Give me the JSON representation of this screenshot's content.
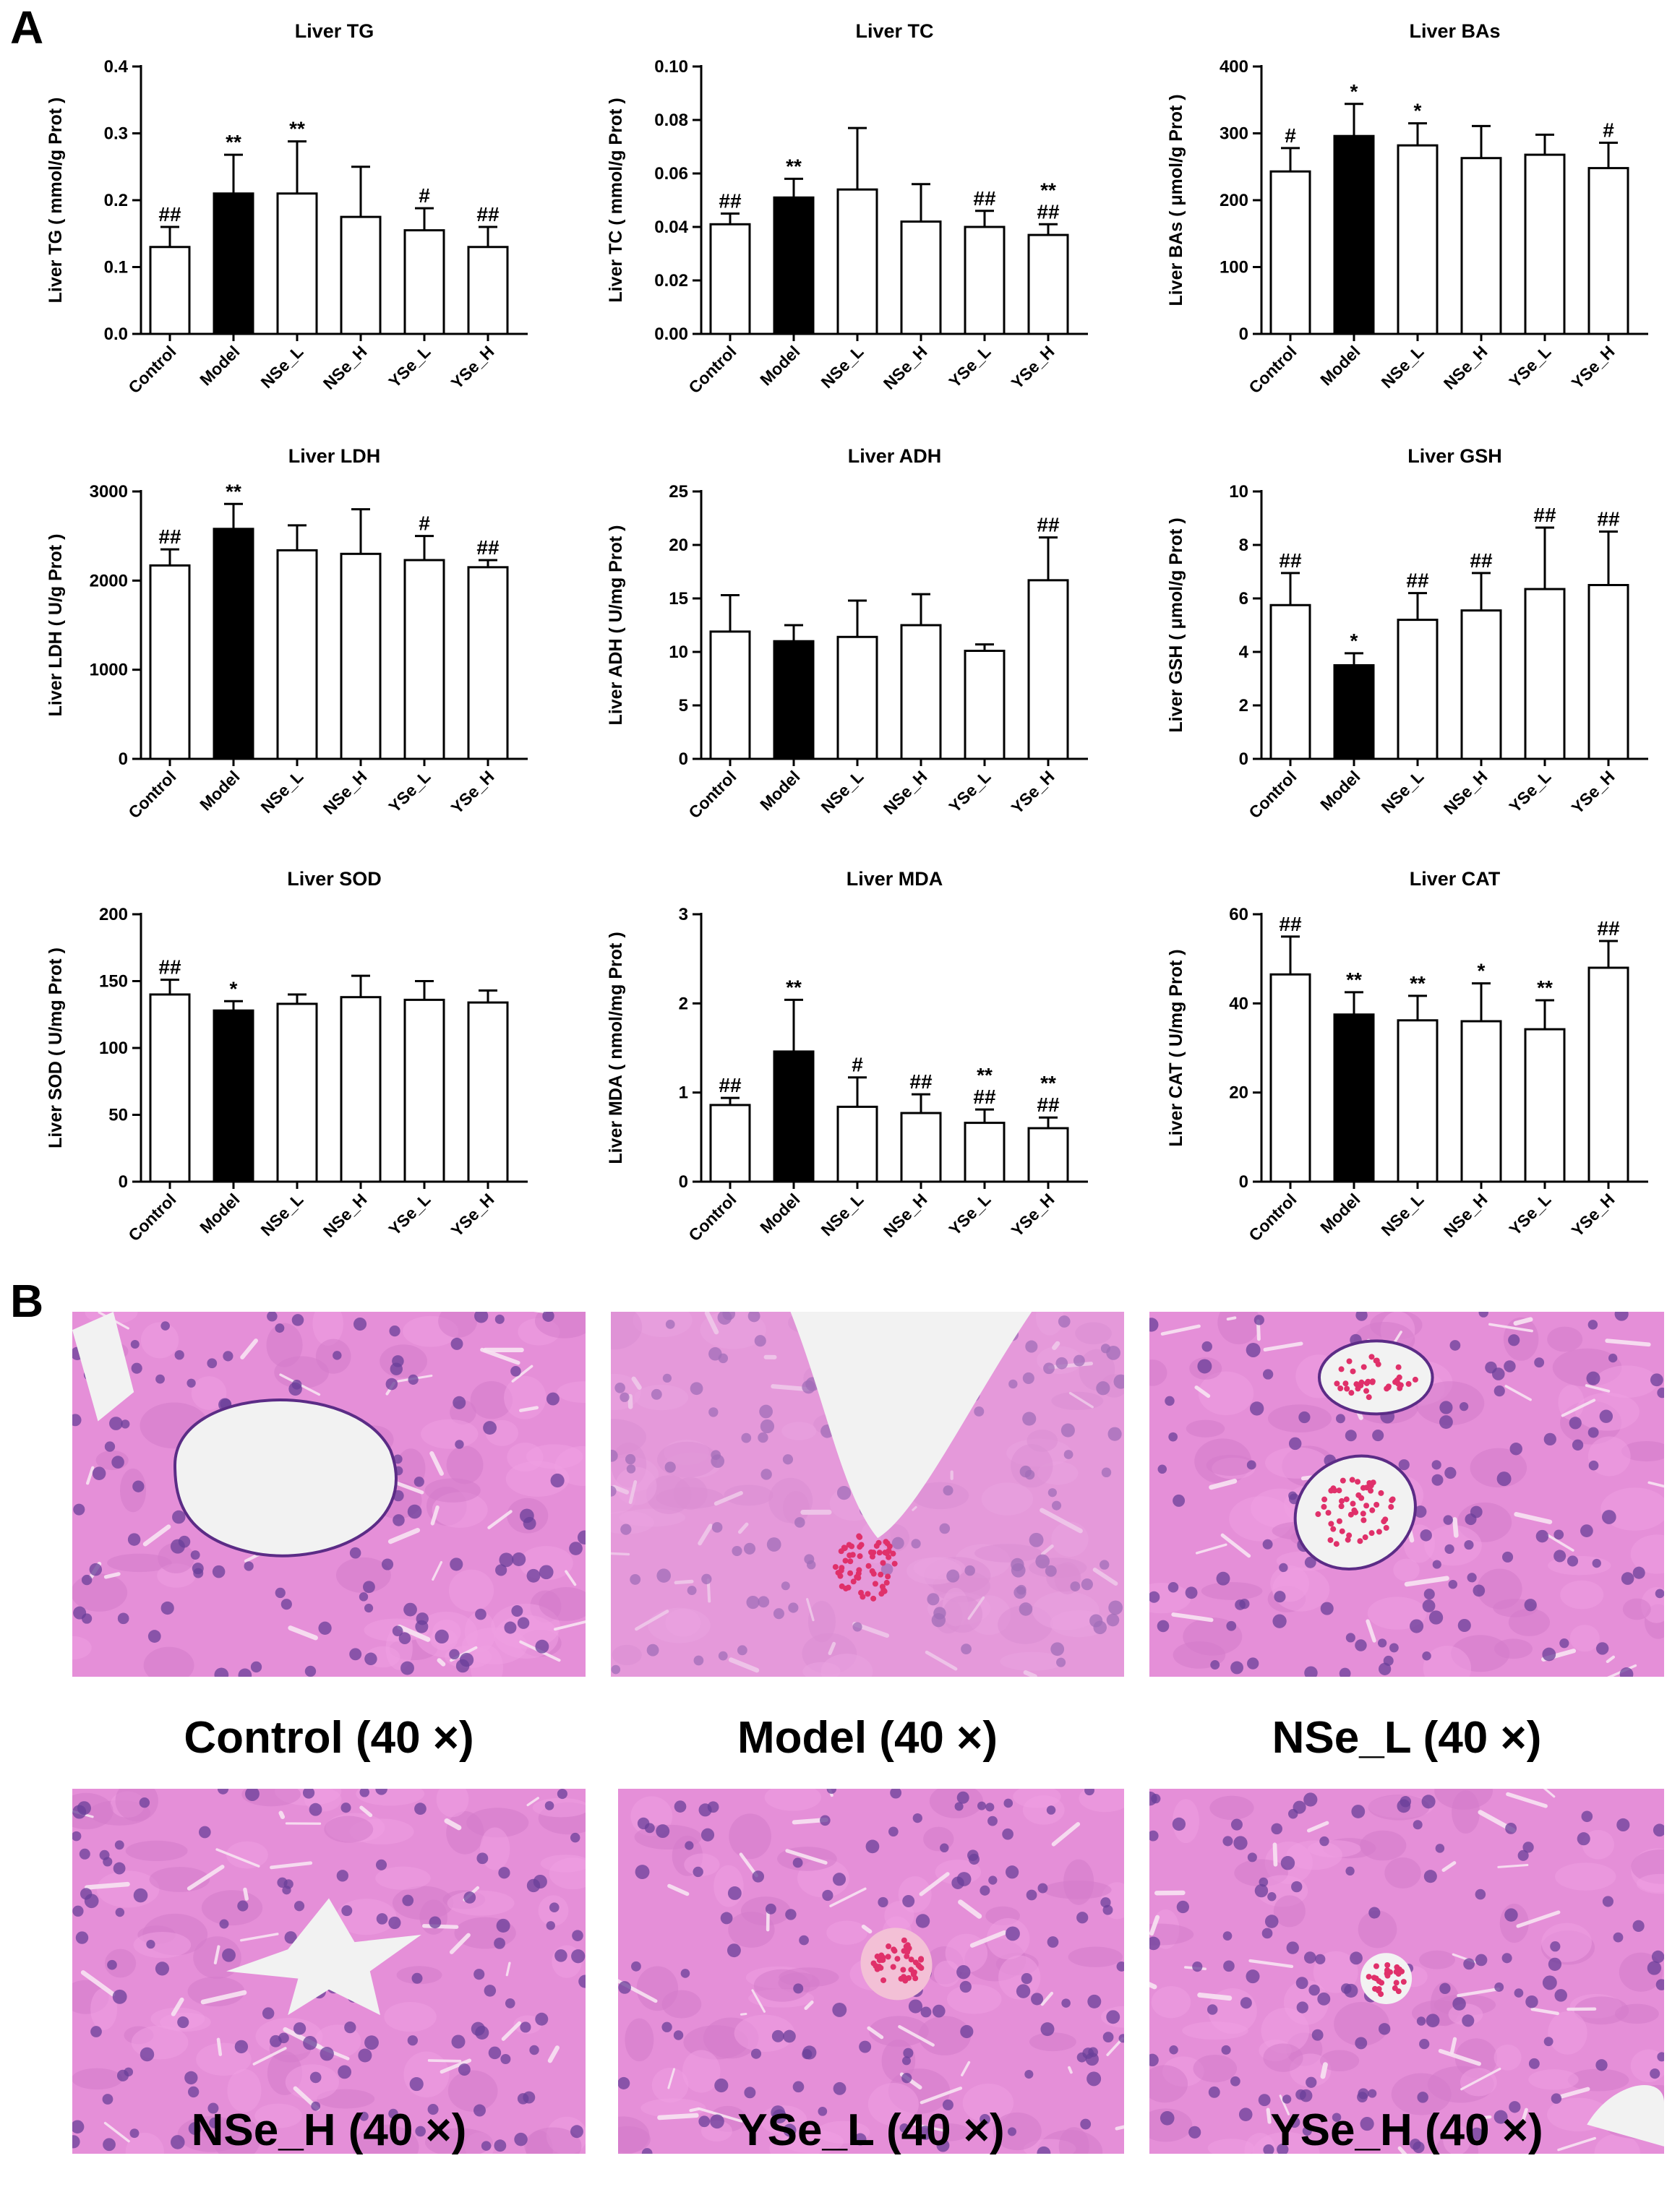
{
  "panel_labels": {
    "a": "A",
    "b": "B"
  },
  "colors": {
    "filled_bar": "#000000",
    "open_bar": "#ffffff",
    "stroke": "#000000",
    "tissue_base": "#e58fd8",
    "tissue_nucleus": "#6a3f9a",
    "lumen": "#f2f2f2",
    "rbc": "#e0306a"
  },
  "chart_data": [
    {
      "type": "bar",
      "title": "Liver TG",
      "ylabel": "Liver TG ( mmol/g Prot )",
      "categories": [
        "Control",
        "Model",
        "NSe_L",
        "NSe_H",
        "YSe_L",
        "YSe_H"
      ],
      "values": [
        0.13,
        0.21,
        0.21,
        0.175,
        0.155,
        0.13
      ],
      "errors": [
        0.03,
        0.058,
        0.078,
        0.075,
        0.033,
        0.03
      ],
      "annotations": [
        "##",
        "**",
        "**",
        "",
        "#",
        "##"
      ],
      "ylim": [
        0,
        0.4
      ],
      "yticks": [
        "0.0",
        "0.1",
        "0.2",
        "0.3",
        "0.4"
      ],
      "filled": [
        false,
        true,
        false,
        false,
        false,
        false
      ]
    },
    {
      "type": "bar",
      "title": "Liver TC",
      "ylabel": "Liver TC ( mmol/g Prot )",
      "categories": [
        "Control",
        "Model",
        "NSe_L",
        "NSe_H",
        "YSe_L",
        "YSe_H"
      ],
      "values": [
        0.041,
        0.051,
        0.054,
        0.042,
        0.04,
        0.037
      ],
      "errors": [
        0.004,
        0.007,
        0.023,
        0.014,
        0.006,
        0.004
      ],
      "annotations": [
        "##",
        "**",
        "",
        "",
        "##",
        "**\n##"
      ],
      "ylim": [
        0,
        0.1
      ],
      "yticks": [
        "0.00",
        "0.02",
        "0.04",
        "0.06",
        "0.08",
        "0.10"
      ],
      "filled": [
        false,
        true,
        false,
        false,
        false,
        false
      ]
    },
    {
      "type": "bar",
      "title": "Liver BAs",
      "ylabel": "Liver BAs ( μmol/g Prot )",
      "categories": [
        "Control",
        "Model",
        "NSe_L",
        "NSe_H",
        "YSe_L",
        "YSe_H"
      ],
      "values": [
        243,
        296,
        282,
        263,
        268,
        248
      ],
      "errors": [
        35,
        48,
        33,
        48,
        30,
        38
      ],
      "annotations": [
        "#",
        "*",
        "*",
        "",
        "",
        "#"
      ],
      "ylim": [
        0,
        400
      ],
      "yticks": [
        "0",
        "100",
        "200",
        "300",
        "400"
      ],
      "filled": [
        false,
        true,
        false,
        false,
        false,
        false
      ]
    },
    {
      "type": "bar",
      "title": "Liver LDH",
      "ylabel": "Liver LDH ( U/g Prot )",
      "categories": [
        "Control",
        "Model",
        "NSe_L",
        "NSe_H",
        "YSe_L",
        "YSe_H"
      ],
      "values": [
        2170,
        2580,
        2340,
        2300,
        2230,
        2150
      ],
      "errors": [
        180,
        280,
        280,
        500,
        270,
        80
      ],
      "annotations": [
        "##",
        "**",
        "",
        "",
        "#",
        "##"
      ],
      "ylim": [
        0,
        3000
      ],
      "yticks": [
        "0",
        "1000",
        "2000",
        "3000"
      ],
      "filled": [
        false,
        true,
        false,
        false,
        false,
        false
      ]
    },
    {
      "type": "bar",
      "title": "Liver ADH",
      "ylabel": "Liver ADH ( U/mg Prot )",
      "categories": [
        "Control",
        "Model",
        "NSe_L",
        "NSe_H",
        "YSe_L",
        "YSe_H"
      ],
      "values": [
        11.9,
        11.0,
        11.4,
        12.5,
        10.1,
        16.7
      ],
      "errors": [
        3.4,
        1.5,
        3.4,
        2.9,
        0.6,
        4.0
      ],
      "annotations": [
        "",
        "",
        "",
        "",
        "",
        "##"
      ],
      "ylim": [
        0,
        25
      ],
      "yticks": [
        "0",
        "5",
        "10",
        "15",
        "20",
        "25"
      ],
      "filled": [
        false,
        true,
        false,
        false,
        false,
        false
      ]
    },
    {
      "type": "bar",
      "title": "Liver GSH",
      "ylabel": "Liver GSH ( μmol/g Prot )",
      "categories": [
        "Control",
        "Model",
        "NSe_L",
        "NSe_H",
        "YSe_L",
        "YSe_H"
      ],
      "values": [
        5.75,
        3.5,
        5.2,
        5.55,
        6.35,
        6.5
      ],
      "errors": [
        1.2,
        0.45,
        1.0,
        1.4,
        2.3,
        2.0
      ],
      "annotations": [
        "##",
        "*",
        "##",
        "##",
        "##",
        "##"
      ],
      "ylim": [
        0,
        10
      ],
      "yticks": [
        "0",
        "2",
        "4",
        "6",
        "8",
        "10"
      ],
      "filled": [
        false,
        true,
        false,
        false,
        false,
        false
      ]
    },
    {
      "type": "bar",
      "title": "Liver SOD",
      "ylabel": "Liver SOD ( U/mg Prot )",
      "categories": [
        "Control",
        "Model",
        "NSe_L",
        "NSe_H",
        "YSe_L",
        "YSe_H"
      ],
      "values": [
        140,
        128,
        133,
        138,
        136,
        134
      ],
      "errors": [
        11,
        7,
        7,
        16,
        14,
        9
      ],
      "annotations": [
        "##",
        "*",
        "",
        "",
        "",
        ""
      ],
      "ylim": [
        0,
        200
      ],
      "yticks": [
        "0",
        "50",
        "100",
        "150",
        "200"
      ],
      "filled": [
        false,
        true,
        false,
        false,
        false,
        false
      ]
    },
    {
      "type": "bar",
      "title": "Liver MDA",
      "ylabel": "Liver MDA ( nmol/mg Prot )",
      "categories": [
        "Control",
        "Model",
        "NSe_L",
        "NSe_H",
        "YSe_L",
        "YSe_H"
      ],
      "values": [
        0.86,
        1.46,
        0.84,
        0.77,
        0.66,
        0.6
      ],
      "errors": [
        0.08,
        0.58,
        0.33,
        0.21,
        0.15,
        0.12
      ],
      "annotations": [
        "##",
        "**",
        "#",
        "##",
        "**\n##",
        "**\n##"
      ],
      "ylim": [
        0,
        3
      ],
      "yticks": [
        "0",
        "1",
        "2",
        "3"
      ],
      "filled": [
        false,
        true,
        false,
        false,
        false,
        false
      ]
    },
    {
      "type": "bar",
      "title": "Liver CAT",
      "ylabel": "Liver CAT ( U/mg Prot )",
      "categories": [
        "Control",
        "Model",
        "NSe_L",
        "NSe_H",
        "YSe_L",
        "YSe_H"
      ],
      "values": [
        46.5,
        37.5,
        36.2,
        36.0,
        34.2,
        48.0
      ],
      "errors": [
        8.5,
        5.0,
        5.5,
        8.5,
        6.5,
        6.0
      ],
      "annotations": [
        "##",
        "**",
        "**",
        "*",
        "**",
        "##"
      ],
      "ylim": [
        0,
        60
      ],
      "yticks": [
        "0",
        "20",
        "40",
        "60"
      ],
      "filled": [
        false,
        true,
        false,
        false,
        false,
        false
      ]
    }
  ],
  "micrographs": [
    {
      "caption": "Control (40 ×)",
      "lumen": "round"
    },
    {
      "caption": "Model (40 ×)",
      "lumen": "wedge"
    },
    {
      "caption": "NSe_L (40 ×)",
      "lumen": "double"
    },
    {
      "caption": "NSe_H (40 ×)",
      "lumen": "star"
    },
    {
      "caption": "YSe_L (40 ×)",
      "lumen": "vessel"
    },
    {
      "caption": "YSe_H (40 ×)",
      "lumen": "small"
    }
  ]
}
